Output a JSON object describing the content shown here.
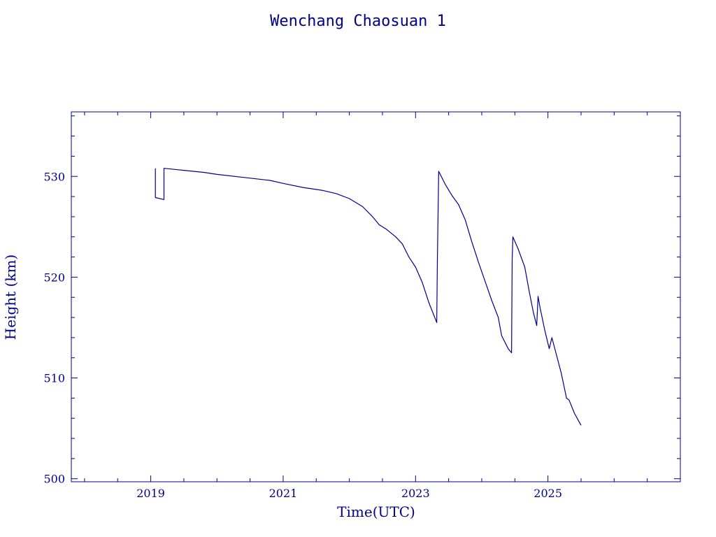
{
  "colors": {
    "ink": "#00008b",
    "background": "#ffffff"
  },
  "chart_data": {
    "type": "line",
    "title": "Wenchang Chaosuan 1",
    "xlabel": "Time(UTC)",
    "ylabel": "Height (km)",
    "xlim": [
      2017.8,
      2027.0
    ],
    "ylim": [
      499.7,
      536.4
    ],
    "xticks": [
      2019,
      2021,
      2023,
      2025
    ],
    "yticks": [
      500,
      510,
      520,
      530
    ],
    "grid": false,
    "series": [
      {
        "points": [
          [
            2019.07,
            530.8
          ],
          [
            2019.07,
            527.9
          ],
          [
            2019.2,
            527.7
          ],
          [
            2019.2,
            530.8
          ],
          [
            2019.5,
            530.6
          ],
          [
            2019.8,
            530.4
          ],
          [
            2020.0,
            530.2
          ],
          [
            2020.4,
            529.9
          ],
          [
            2020.8,
            529.6
          ],
          [
            2021.0,
            529.3
          ],
          [
            2021.3,
            528.9
          ],
          [
            2021.6,
            528.6
          ],
          [
            2021.8,
            528.3
          ],
          [
            2022.0,
            527.8
          ],
          [
            2022.2,
            527.0
          ],
          [
            2022.35,
            526.0
          ],
          [
            2022.45,
            525.2
          ],
          [
            2022.55,
            524.8
          ],
          [
            2022.7,
            524.0
          ],
          [
            2022.8,
            523.3
          ],
          [
            2022.9,
            522.0
          ],
          [
            2023.0,
            521.0
          ],
          [
            2023.1,
            519.5
          ],
          [
            2023.2,
            517.5
          ],
          [
            2023.32,
            515.5
          ],
          [
            2023.33,
            521.5
          ],
          [
            2023.35,
            530.5
          ],
          [
            2023.45,
            529.2
          ],
          [
            2023.55,
            528.1
          ],
          [
            2023.65,
            527.2
          ],
          [
            2023.75,
            525.7
          ],
          [
            2023.85,
            523.5
          ],
          [
            2023.95,
            521.5
          ],
          [
            2024.05,
            519.6
          ],
          [
            2024.15,
            517.7
          ],
          [
            2024.25,
            516.0
          ],
          [
            2024.3,
            514.2
          ],
          [
            2024.4,
            512.9
          ],
          [
            2024.45,
            512.5
          ],
          [
            2024.46,
            521.8
          ],
          [
            2024.47,
            524.0
          ],
          [
            2024.55,
            522.8
          ],
          [
            2024.65,
            521.0
          ],
          [
            2024.72,
            518.5
          ],
          [
            2024.78,
            516.5
          ],
          [
            2024.83,
            515.2
          ],
          [
            2024.85,
            518.1
          ],
          [
            2024.88,
            517.0
          ],
          [
            2024.95,
            514.8
          ],
          [
            2025.02,
            512.9
          ],
          [
            2025.06,
            514.0
          ],
          [
            2025.12,
            512.5
          ],
          [
            2025.2,
            510.5
          ],
          [
            2025.28,
            508.0
          ],
          [
            2025.32,
            507.8
          ],
          [
            2025.4,
            506.5
          ],
          [
            2025.5,
            505.3
          ]
        ]
      }
    ]
  }
}
